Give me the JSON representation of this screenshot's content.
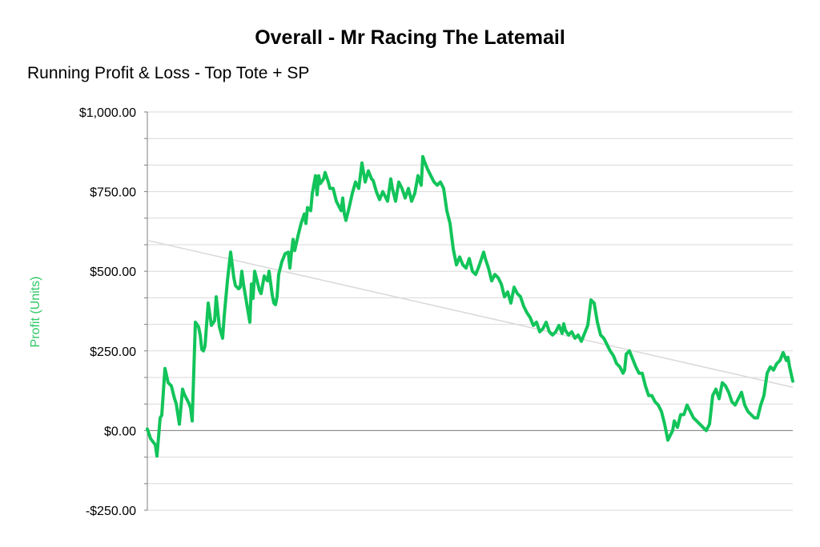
{
  "colors": {
    "series": "#12c45a",
    "trend": "#d9d9d9",
    "grid": "#d9d9d9",
    "zero_line": "#7f7f7f",
    "axis": "#7f7f7f",
    "ylabel": "#2ec866"
  },
  "chart_data": {
    "type": "line",
    "title": "Overall - Mr Racing The Latemail",
    "subtitle": "Running Profit & Loss - Top Tote + SP",
    "ylabel": "Profit (Units)",
    "xlabel": "",
    "ylim": [
      -250,
      1000
    ],
    "yticks": [
      {
        "value": 1000,
        "label": "$1,000.00"
      },
      {
        "value": 750,
        "label": "$750.00"
      },
      {
        "value": 500,
        "label": "$500.00"
      },
      {
        "value": 250,
        "label": "$250.00"
      },
      {
        "value": 0,
        "label": "$0.00"
      },
      {
        "value": -250,
        "label": "-$250.00"
      }
    ],
    "grid": true,
    "legend": "none",
    "x": [
      0,
      4,
      10,
      12,
      16,
      18,
      22,
      26,
      30,
      34,
      36,
      40,
      44,
      46,
      52,
      54,
      56,
      60,
      64,
      66,
      68,
      70,
      72,
      76,
      80,
      84,
      86,
      90,
      94,
      96,
      100,
      104,
      108,
      110,
      114,
      116,
      118,
      120,
      124,
      126,
      128,
      130,
      132,
      134,
      138,
      140,
      142,
      146,
      150,
      152,
      156,
      158,
      160,
      162,
      164,
      168,
      172,
      176,
      178,
      180,
      182,
      184,
      188,
      192,
      196,
      198,
      200,
      204,
      206,
      210,
      212,
      214,
      216,
      220,
      222,
      224,
      226,
      228,
      232,
      236,
      240,
      242,
      244,
      246,
      248,
      252,
      256,
      260,
      264,
      268,
      272,
      276,
      280,
      282,
      286,
      290,
      294,
      296,
      300,
      304,
      306,
      310,
      314,
      318,
      322,
      326,
      330,
      334,
      338,
      342,
      344,
      346,
      350,
      354,
      358,
      362,
      366,
      370,
      374,
      378,
      382,
      386,
      390,
      394,
      398,
      402,
      406,
      410,
      414,
      418,
      420,
      422,
      426,
      430,
      434,
      438,
      442,
      446,
      450,
      454,
      458,
      462,
      466,
      470,
      474,
      478,
      482,
      486,
      490,
      494,
      498,
      502,
      506,
      510,
      514,
      518,
      520,
      522,
      526,
      530,
      534,
      538,
      542,
      546,
      550,
      554,
      558,
      562,
      566,
      570,
      574,
      578,
      582,
      586,
      590,
      594,
      596,
      598,
      602,
      606,
      610,
      614,
      618,
      622,
      626,
      630,
      634,
      638,
      642,
      646,
      650,
      654,
      656,
      658,
      662,
      666,
      670,
      674,
      678,
      682,
      686,
      690,
      694,
      698,
      702,
      706,
      710,
      714,
      718,
      722,
      726,
      730,
      734,
      738,
      742,
      746,
      750,
      754,
      758,
      762,
      766,
      770,
      774,
      778,
      782,
      786,
      790,
      794,
      798,
      800,
      802,
      806
    ],
    "trend": {
      "x": [
        0,
        806
      ],
      "y": [
        597,
        136
      ]
    },
    "series": [
      {
        "values": [
          5,
          -25,
          -45,
          -80,
          40,
          48,
          195,
          150,
          140,
          100,
          85,
          20,
          130,
          115,
          85,
          70,
          30,
          340,
          325,
          300,
          255,
          250,
          265,
          400,
          330,
          345,
          420,
          325,
          290,
          360,
          470,
          560,
          480,
          455,
          445,
          450,
          500,
          460,
          400,
          370,
          340,
          460,
          415,
          500,
          460,
          440,
          430,
          485,
          470,
          500,
          425,
          400,
          395,
          420,
          490,
          530,
          555,
          560,
          510,
          560,
          600,
          565,
          610,
          650,
          680,
          650,
          700,
          690,
          745,
          800,
          740,
          800,
          775,
          790,
          810,
          795,
          780,
          760,
          760,
          720,
          700,
          690,
          730,
          680,
          660,
          700,
          745,
          780,
          760,
          840,
          780,
          815,
          790,
          785,
          750,
          725,
          750,
          740,
          720,
          790,
          760,
          720,
          780,
          760,
          730,
          760,
          720,
          745,
          800,
          770,
          860,
          845,
          820,
          800,
          780,
          770,
          780,
          760,
          690,
          650,
          570,
          520,
          545,
          520,
          510,
          540,
          500,
          490,
          515,
          545,
          560,
          540,
          510,
          470,
          490,
          480,
          460,
          420,
          435,
          400,
          450,
          430,
          420,
          390,
          370,
          355,
          330,
          340,
          310,
          320,
          340,
          310,
          300,
          310,
          330,
          305,
          335,
          315,
          300,
          310,
          290,
          300,
          280,
          305,
          330,
          410,
          400,
          340,
          300,
          290,
          270,
          250,
          235,
          210,
          200,
          180,
          190,
          240,
          250,
          225,
          200,
          180,
          180,
          140,
          110,
          110,
          90,
          80,
          60,
          20,
          -30,
          -10,
          0,
          30,
          10,
          50,
          50,
          80,
          60,
          40,
          30,
          20,
          10,
          0,
          20,
          110,
          130,
          100,
          150,
          140,
          120,
          90,
          80,
          100,
          120,
          80,
          60,
          50,
          40,
          40,
          80,
          110,
          180,
          200,
          190,
          210,
          220,
          245,
          220,
          230,
          200,
          155
        ]
      }
    ]
  }
}
